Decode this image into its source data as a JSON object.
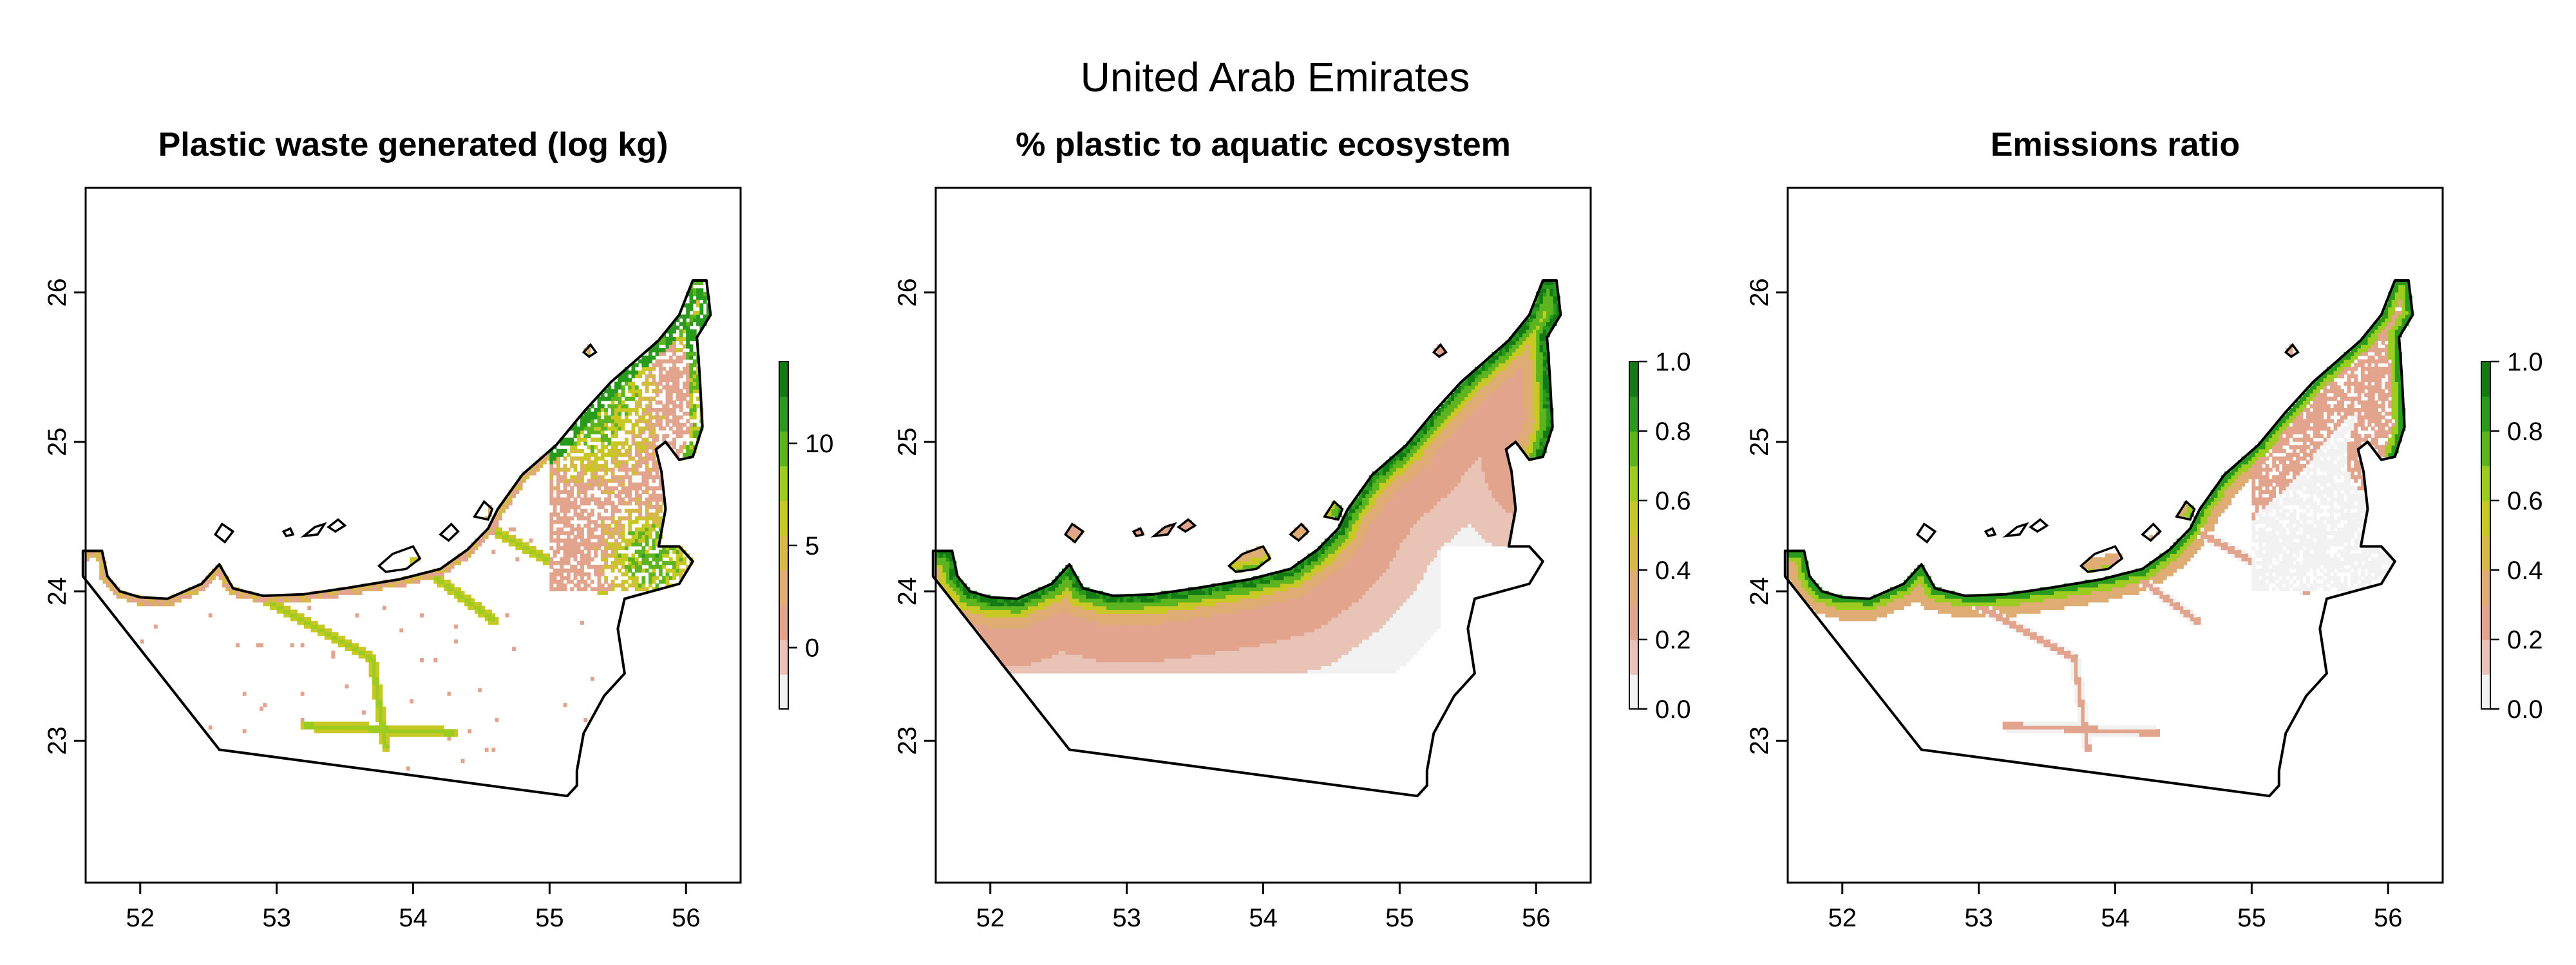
{
  "figure_title": "United Arab Emirates",
  "palette": [
    "#f2f2f2",
    "#e9c3b6",
    "#e2a48d",
    "#dfac74",
    "#d7b84a",
    "#c8c824",
    "#9ccc20",
    "#5cb51e",
    "#2a9a1c",
    "#137a14"
  ],
  "outline_color": "#000000",
  "chart_data": [
    {
      "type": "heatmap",
      "title": "Plastic waste generated (log kg)",
      "xlim": [
        51.6,
        56.4
      ],
      "ylim": [
        22.05,
        26.7
      ],
      "xticks": [
        "52",
        "53",
        "54",
        "55",
        "56"
      ],
      "yticks": [
        "23",
        "24",
        "25",
        "26"
      ],
      "legend": {
        "min": -3.0,
        "max": 14.0,
        "ticks": [
          "0",
          "5",
          "10"
        ],
        "tick_values": [
          0,
          5,
          10
        ],
        "placement": "right"
      },
      "pattern": "population"
    },
    {
      "type": "heatmap",
      "title": "% plastic to aquatic ecosystem",
      "xlim": [
        51.6,
        56.4
      ],
      "ylim": [
        22.05,
        26.7
      ],
      "xticks": [
        "52",
        "53",
        "54",
        "55",
        "56"
      ],
      "yticks": [
        "23",
        "24",
        "25",
        "26"
      ],
      "legend": {
        "min": 0.0,
        "max": 1.0,
        "ticks": [
          "0.0",
          "0.2",
          "0.4",
          "0.6",
          "0.8",
          "1.0"
        ],
        "tick_values": [
          0,
          0.2,
          0.4,
          0.6,
          0.8,
          1.0
        ],
        "placement": "right"
      },
      "pattern": "coastal"
    },
    {
      "type": "heatmap",
      "title": "Emissions ratio",
      "xlim": [
        51.6,
        56.4
      ],
      "ylim": [
        22.05,
        26.7
      ],
      "xticks": [
        "52",
        "53",
        "54",
        "55",
        "56"
      ],
      "yticks": [
        "23",
        "24",
        "25",
        "26"
      ],
      "legend": {
        "min": 0.0,
        "max": 1.0,
        "ticks": [
          "0.0",
          "0.2",
          "0.4",
          "0.6",
          "0.8",
          "1.0"
        ],
        "tick_values": [
          0,
          0.2,
          0.4,
          0.6,
          0.8,
          1.0
        ],
        "placement": "right"
      },
      "pattern": "ratio"
    }
  ],
  "border": [
    [
      51.58,
      24.27
    ],
    [
      51.72,
      24.27
    ],
    [
      51.76,
      24.1
    ],
    [
      51.85,
      24.0
    ],
    [
      52.0,
      23.96
    ],
    [
      52.2,
      23.95
    ],
    [
      52.45,
      24.05
    ],
    [
      52.58,
      24.18
    ],
    [
      52.68,
      24.02
    ],
    [
      52.9,
      23.97
    ],
    [
      53.2,
      23.98
    ],
    [
      53.5,
      24.02
    ],
    [
      53.9,
      24.08
    ],
    [
      54.2,
      24.15
    ],
    [
      54.4,
      24.28
    ],
    [
      54.55,
      24.42
    ],
    [
      54.62,
      24.55
    ],
    [
      54.8,
      24.78
    ],
    [
      55.05,
      24.98
    ],
    [
      55.25,
      25.2
    ],
    [
      55.45,
      25.4
    ],
    [
      55.6,
      25.52
    ],
    [
      55.8,
      25.68
    ],
    [
      55.95,
      25.85
    ],
    [
      56.05,
      26.08
    ],
    [
      56.15,
      26.08
    ],
    [
      56.18,
      25.85
    ],
    [
      56.08,
      25.7
    ],
    [
      56.1,
      25.45
    ],
    [
      56.12,
      25.1
    ],
    [
      56.05,
      24.9
    ],
    [
      55.95,
      24.88
    ],
    [
      55.85,
      25.0
    ],
    [
      55.78,
      24.95
    ],
    [
      55.82,
      24.8
    ],
    [
      55.85,
      24.55
    ],
    [
      55.8,
      24.3
    ],
    [
      55.95,
      24.3
    ],
    [
      56.05,
      24.2
    ],
    [
      55.95,
      24.05
    ],
    [
      55.75,
      24.0
    ],
    [
      55.55,
      23.95
    ],
    [
      55.5,
      23.75
    ],
    [
      55.55,
      23.45
    ],
    [
      55.4,
      23.3
    ],
    [
      55.25,
      23.05
    ],
    [
      55.2,
      22.8
    ],
    [
      55.2,
      22.7
    ],
    [
      55.13,
      22.63
    ],
    [
      52.58,
      22.94
    ],
    [
      51.58,
      24.1
    ]
  ],
  "islands": [
    [
      [
        52.55,
        24.38
      ],
      [
        52.6,
        24.45
      ],
      [
        52.68,
        24.4
      ],
      [
        52.62,
        24.33
      ]
    ],
    [
      [
        53.05,
        24.4
      ],
      [
        53.1,
        24.42
      ],
      [
        53.12,
        24.38
      ],
      [
        53.07,
        24.37
      ]
    ],
    [
      [
        53.2,
        24.37
      ],
      [
        53.28,
        24.43
      ],
      [
        53.35,
        24.45
      ],
      [
        53.3,
        24.38
      ]
    ],
    [
      [
        53.38,
        24.43
      ],
      [
        53.45,
        24.48
      ],
      [
        53.5,
        24.44
      ],
      [
        53.43,
        24.4
      ]
    ],
    [
      [
        53.75,
        24.17
      ],
      [
        53.85,
        24.25
      ],
      [
        54.0,
        24.3
      ],
      [
        54.05,
        24.22
      ],
      [
        53.95,
        24.15
      ],
      [
        53.8,
        24.13
      ]
    ],
    [
      [
        54.2,
        24.38
      ],
      [
        54.28,
        24.45
      ],
      [
        54.33,
        24.4
      ],
      [
        54.26,
        24.34
      ]
    ],
    [
      [
        54.45,
        24.5
      ],
      [
        54.52,
        24.6
      ],
      [
        54.58,
        24.55
      ],
      [
        54.55,
        24.48
      ]
    ],
    [
      [
        55.25,
        25.6
      ],
      [
        55.3,
        25.65
      ],
      [
        55.34,
        25.6
      ],
      [
        55.29,
        25.57
      ]
    ]
  ]
}
